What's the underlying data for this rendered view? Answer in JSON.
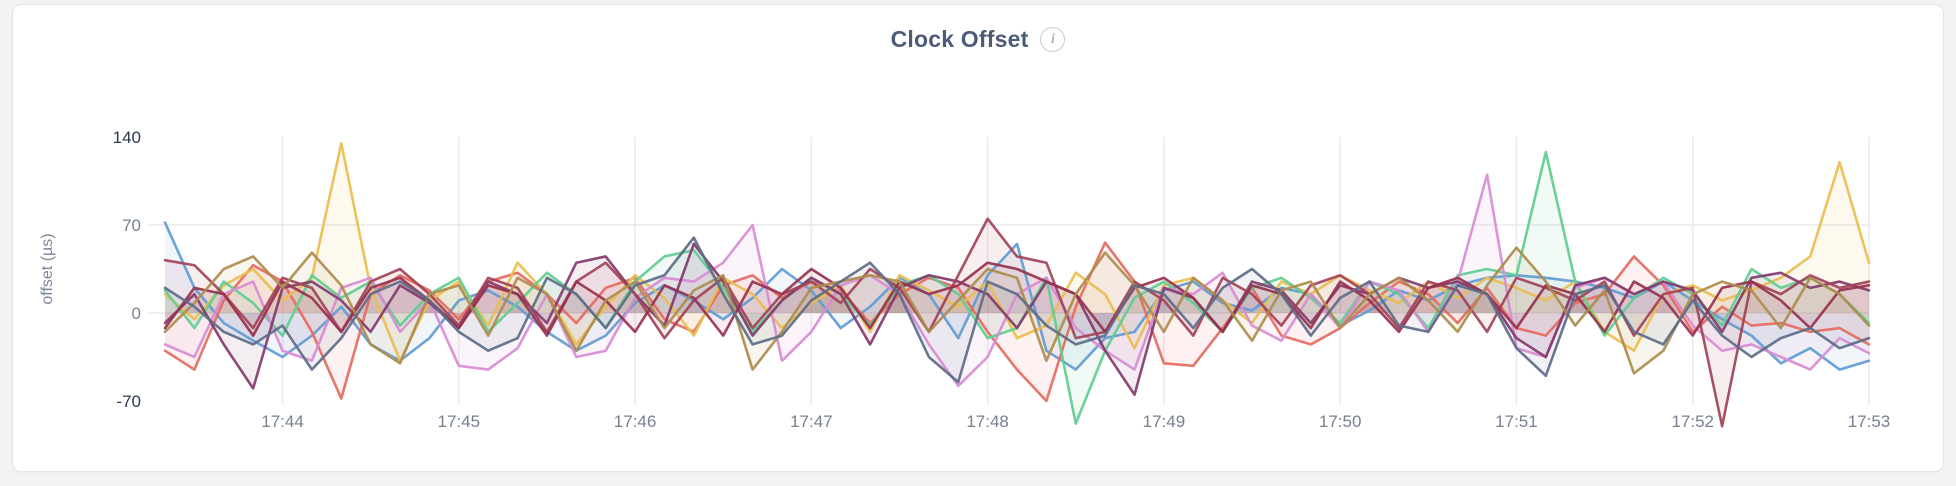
{
  "header": {
    "title": "Clock Offset",
    "info_icon": "i"
  },
  "colors": {
    "page_background": "#f2f3f4",
    "card_background": "#ffffff",
    "card_border": "#e2e4e7",
    "title_text": "#4c5b77",
    "gridline": "#e9eaec",
    "axis_tick_emphasis": "#29364f",
    "axis_tick_muted": "#76808f",
    "axis_label": "#7c8699"
  },
  "chart_data": {
    "type": "line",
    "title": "Clock Offset",
    "xlabel": "",
    "ylabel": "offset (µs)",
    "ylim": [
      -70,
      140
    ],
    "y_ticks": [
      140,
      70,
      0,
      -70
    ],
    "y_gridlines": [
      70,
      0
    ],
    "grid": true,
    "legend": "none",
    "fill": "area-to-zero",
    "x_interval_seconds": 10,
    "x_tick_labels": [
      "17:44",
      "17:45",
      "17:46",
      "17:47",
      "17:48",
      "17:49",
      "17:50",
      "17:51",
      "17:52",
      "17:53"
    ],
    "x_tick_indices": [
      4,
      10,
      16,
      22,
      28,
      34,
      40,
      46,
      52,
      58
    ],
    "series": [
      {
        "name": "series-blue",
        "color": "#5F9BD2",
        "values": [
          72,
          20,
          -8,
          -22,
          -35,
          -18,
          5,
          -25,
          -38,
          -20,
          10,
          18,
          5,
          -15,
          -30,
          -18,
          8,
          22,
          10,
          -5,
          12,
          35,
          18,
          -12,
          5,
          28,
          15,
          -20,
          30,
          55,
          -30,
          -45,
          -20,
          -15,
          18,
          25,
          8,
          2,
          20,
          15,
          -10,
          2,
          18,
          10,
          22,
          28,
          30,
          28,
          25,
          20,
          12,
          25,
          10,
          -5,
          -18,
          -40,
          -28,
          -45,
          -38
        ]
      },
      {
        "name": "series-salmon",
        "color": "#E56A5F",
        "values": [
          -30,
          -45,
          10,
          38,
          25,
          -15,
          -68,
          15,
          30,
          18,
          -5,
          25,
          32,
          15,
          -8,
          20,
          28,
          -5,
          -15,
          22,
          30,
          12,
          25,
          18,
          -8,
          15,
          28,
          20,
          -15,
          -45,
          -70,
          5,
          56,
          25,
          -40,
          -42,
          -12,
          20,
          -18,
          -25,
          -12,
          8,
          25,
          15,
          -8,
          20,
          -12,
          -18,
          8,
          15,
          45,
          22,
          -15,
          5,
          -10,
          -8,
          -15,
          -12,
          -25
        ]
      },
      {
        "name": "series-gold",
        "color": "#EABD4E",
        "values": [
          15,
          -5,
          22,
          35,
          10,
          28,
          135,
          20,
          -38,
          10,
          25,
          -10,
          40,
          15,
          -25,
          5,
          30,
          12,
          -18,
          28,
          15,
          -12,
          8,
          22,
          -15,
          30,
          18,
          5,
          25,
          -20,
          -10,
          32,
          15,
          -28,
          22,
          28,
          10,
          -8,
          25,
          15,
          30,
          18,
          8,
          25,
          12,
          28,
          20,
          10,
          25,
          -15,
          -30,
          15,
          22,
          10,
          18,
          28,
          45,
          120,
          40
        ]
      },
      {
        "name": "series-green",
        "color": "#5FCD90",
        "values": [
          18,
          -12,
          25,
          8,
          -18,
          30,
          12,
          25,
          -10,
          15,
          28,
          -15,
          8,
          32,
          15,
          -12,
          25,
          45,
          50,
          20,
          -15,
          10,
          28,
          15,
          -10,
          22,
          30,
          15,
          -20,
          -12,
          28,
          -88,
          -30,
          12,
          25,
          8,
          -15,
          20,
          28,
          12,
          -8,
          25,
          15,
          -12,
          30,
          35,
          30,
          128,
          25,
          -18,
          12,
          28,
          15,
          -10,
          35,
          20,
          28,
          15,
          -8
        ]
      },
      {
        "name": "series-orchid",
        "color": "#D88BD4",
        "values": [
          -25,
          -35,
          15,
          25,
          -30,
          -38,
          20,
          28,
          -15,
          10,
          -42,
          -45,
          -28,
          15,
          -35,
          -30,
          12,
          28,
          25,
          40,
          70,
          -38,
          -15,
          22,
          30,
          15,
          -25,
          -58,
          -35,
          15,
          28,
          -12,
          -30,
          -45,
          20,
          15,
          32,
          -10,
          -22,
          15,
          -12,
          25,
          18,
          -15,
          25,
          110,
          -28,
          -35,
          20,
          28,
          15,
          25,
          -10,
          -30,
          -25,
          -35,
          -45,
          -20,
          -32
        ]
      },
      {
        "name": "series-plum",
        "color": "#83396B",
        "values": [
          -8,
          15,
          -25,
          -60,
          20,
          25,
          10,
          -15,
          22,
          8,
          -12,
          25,
          15,
          -8,
          40,
          45,
          15,
          -10,
          55,
          25,
          -18,
          10,
          28,
          15,
          -25,
          20,
          30,
          25,
          15,
          -12,
          25,
          15,
          -30,
          -65,
          20,
          12,
          -15,
          25,
          18,
          -8,
          22,
          15,
          28,
          20,
          25,
          15,
          -20,
          -35,
          22,
          28,
          15,
          25,
          18,
          -15,
          28,
          32,
          20,
          25,
          18
        ]
      },
      {
        "name": "series-maroon",
        "color": "#A24257",
        "values": [
          42,
          38,
          15,
          -12,
          28,
          20,
          -15,
          25,
          35,
          15,
          -10,
          28,
          20,
          -15,
          25,
          40,
          15,
          -20,
          10,
          28,
          -12,
          15,
          25,
          8,
          35,
          20,
          -15,
          30,
          75,
          45,
          40,
          -20,
          -15,
          25,
          10,
          -18,
          28,
          15,
          -10,
          22,
          30,
          15,
          -12,
          25,
          18,
          -15,
          28,
          20,
          10,
          25,
          -18,
          15,
          20,
          -90,
          25,
          15,
          30,
          20,
          25
        ]
      },
      {
        "name": "series-crimson",
        "color": "#97314E",
        "values": [
          -12,
          20,
          15,
          -18,
          25,
          12,
          -15,
          20,
          28,
          10,
          -12,
          22,
          15,
          -18,
          25,
          10,
          -15,
          22,
          12,
          -18,
          25,
          15,
          35,
          20,
          -12,
          25,
          15,
          22,
          40,
          35,
          25,
          15,
          -15,
          20,
          28,
          12,
          -15,
          22,
          15,
          -12,
          25,
          10,
          -15,
          20,
          28,
          15,
          -12,
          22,
          15,
          -15,
          25,
          12,
          -18,
          20,
          25,
          10,
          -12,
          18,
          22
        ]
      },
      {
        "name": "series-khaki",
        "color": "#AC8C4E",
        "values": [
          -15,
          8,
          35,
          45,
          20,
          48,
          22,
          -25,
          -40,
          15,
          22,
          -18,
          28,
          15,
          -30,
          10,
          25,
          -12,
          18,
          30,
          -45,
          -15,
          20,
          25,
          30,
          25,
          -15,
          10,
          35,
          28,
          -38,
          15,
          48,
          22,
          -15,
          28,
          10,
          -22,
          18,
          25,
          -12,
          15,
          28,
          10,
          -15,
          22,
          52,
          25,
          -10,
          18,
          -48,
          -30,
          15,
          25,
          18,
          -12,
          28,
          15,
          -10
        ]
      },
      {
        "name": "series-slate",
        "color": "#5D6B88",
        "values": [
          20,
          5,
          -15,
          -25,
          -10,
          -45,
          -20,
          15,
          25,
          10,
          -15,
          -30,
          -20,
          28,
          15,
          -12,
          22,
          30,
          60,
          15,
          -25,
          -18,
          10,
          25,
          40,
          15,
          -35,
          -55,
          25,
          15,
          -10,
          -25,
          -18,
          22,
          15,
          -12,
          20,
          35,
          15,
          -18,
          12,
          25,
          -10,
          -15,
          22,
          15,
          -28,
          -50,
          15,
          22,
          -15,
          -25,
          10,
          -18,
          -35,
          -20,
          -12,
          -28,
          -20
        ]
      }
    ]
  }
}
